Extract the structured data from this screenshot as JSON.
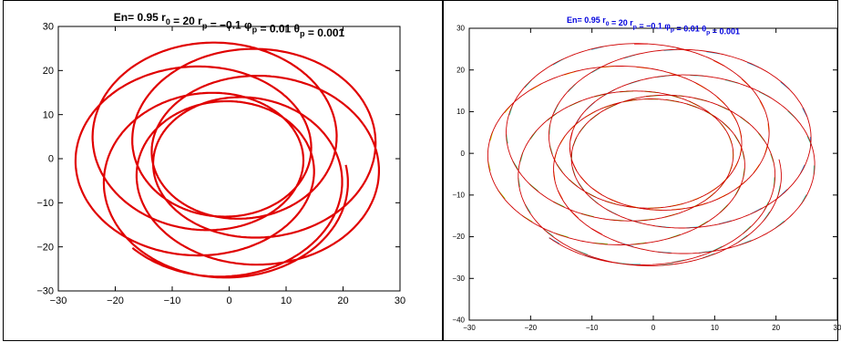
{
  "chart_data": [
    {
      "type": "line",
      "title": {
        "prefix": "En= 0.95 r",
        "sub1": "0",
        "mid1": " = 20 r",
        "sub2": "p",
        "mid2": " = −0.1 φ",
        "sub3": "p",
        "mid3": " = 0.01 θ",
        "sub4": "p",
        "suffix": " = 0.001"
      },
      "title_color": "#000000",
      "xlim": [
        -30,
        30
      ],
      "ylim": [
        -30,
        30
      ],
      "xticks": [
        "−30",
        "−20",
        "−10",
        "0",
        "10",
        "20",
        "30"
      ],
      "yticks": [
        "−30",
        "−20",
        "−10",
        "0",
        "10",
        "20",
        "30"
      ],
      "grid": false,
      "series": [
        {
          "color": "#e00000",
          "precession_deg": -3.5,
          "start_r": 15.0,
          "start_theta_deg": 230,
          "turns": 2.1
        }
      ]
    },
    {
      "type": "line",
      "title": {
        "prefix": "En= 0.95 r",
        "sub1": "0",
        "mid1": " = 20 r",
        "sub2": "p",
        "mid2": " = −0.1 φ",
        "sub3": "p",
        "mid3": " = 0.01 θ",
        "sub4": "p",
        "suffix": " = 0.001"
      },
      "title_color": "#0000dd",
      "xlim": [
        -30,
        30
      ],
      "ylim": [
        -40,
        30
      ],
      "xticks": [
        "−30",
        "−20",
        "−10",
        "0",
        "10",
        "20",
        "30"
      ],
      "yticks": [
        "−40",
        "−30",
        "−20",
        "−10",
        "0",
        "10",
        "20",
        "30"
      ],
      "grid": false,
      "series": [
        {
          "color": "#d00000",
          "precession_deg": -3.5,
          "start_r": 15.0,
          "start_theta_deg": 230,
          "turns": 2.1
        }
      ],
      "quiver": true
    }
  ]
}
